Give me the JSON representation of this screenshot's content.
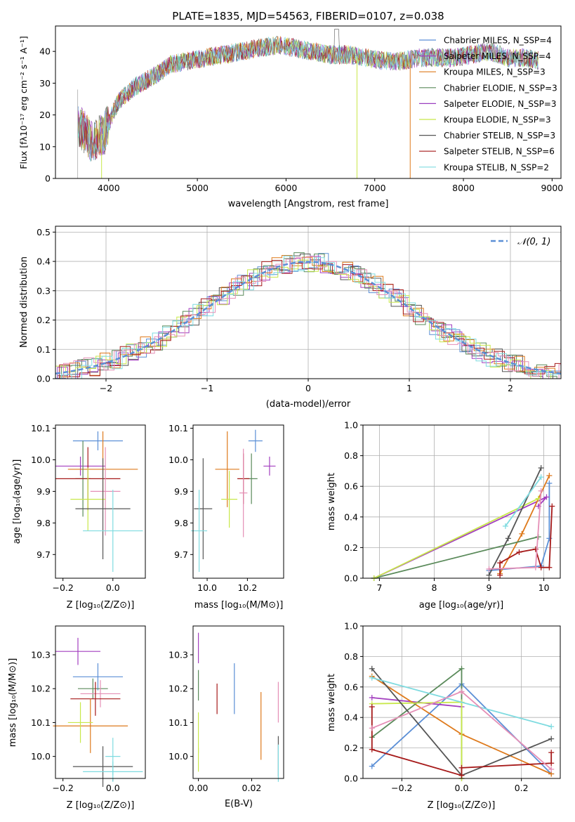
{
  "colors": {
    "s0": "#5b8fd6",
    "s1": "#a33fbf",
    "s2": "#de7a1c",
    "s3": "#5a8a5a",
    "s4": "#9a3fbf",
    "s5": "#c8e84a",
    "s6": "#555555",
    "s7": "#a61a1a",
    "s8": "#7fdbe0",
    "s9": "#e58fb6",
    "gauss": "#5b8fd6"
  },
  "chart_data": [
    {
      "id": "spectrum",
      "type": "line",
      "title": "PLATE=1835, MJD=54563, FIBERID=0107, z=0.038",
      "xlabel": "wavelength [Angstrom, rest frame]",
      "ylabel": "Flux [fλ10⁻¹⁷ erg cm⁻² s⁻¹ A⁻¹]",
      "xlim": [
        3400,
        9100
      ],
      "ylim": [
        0,
        48
      ],
      "xticks": [
        "4000",
        "5000",
        "6000",
        "7000",
        "8000",
        "9000"
      ],
      "yticks": [
        "0",
        "10",
        "20",
        "30",
        "40"
      ],
      "legend_position": "top-right",
      "legend": [
        "Chabrier MILES, N_SSP=4",
        "Salpeter MILES, N_SSP=4",
        "Kroupa MILES, N_SSP=3",
        "Chabrier ELODIE, N_SSP=3",
        "Salpeter ELODIE, N_SSP=3",
        "Kroupa ELODIE, N_SSP=3",
        "Chabrier STELIB, N_SSP=3",
        "Salpeter STELIB, N_SSP=6",
        "Kroupa STELIB, N_SSP=2"
      ],
      "continuum": {
        "x": [
          3650,
          3800,
          3950,
          4100,
          4300,
          4500,
          4700,
          4900,
          5100,
          5300,
          5500,
          5700,
          5900,
          6100,
          6300,
          6500,
          6700,
          6900,
          7100,
          7300,
          7500,
          7700,
          7900,
          8100,
          8300,
          8500,
          8700,
          8850
        ],
        "y": [
          17,
          12,
          14,
          24,
          29,
          32,
          36,
          37,
          38,
          39,
          40,
          41,
          42,
          41,
          40,
          39,
          39,
          38,
          37,
          37,
          38,
          38,
          38,
          39,
          40,
          38,
          38,
          37
        ]
      },
      "drops": [
        {
          "x": 3920,
          "series": 5
        },
        {
          "x": 6800,
          "series": 5
        },
        {
          "x": 7400,
          "series": 2
        }
      ]
    },
    {
      "id": "residuals",
      "type": "line",
      "xlabel": "(data-model)/error",
      "ylabel": "Normed distribution",
      "xlim": [
        -2.5,
        2.5
      ],
      "ylim": [
        0,
        0.52
      ],
      "xticks": [
        "−2",
        "−1",
        "0",
        "1",
        "2"
      ],
      "yticks": [
        "0.0",
        "0.1",
        "0.2",
        "0.3",
        "0.4",
        "0.5"
      ],
      "gauss_label": "𝒩(0, 1)",
      "legend_position": "top-right",
      "grid": true
    },
    {
      "id": "age_vs_Z",
      "type": "scatter",
      "xlabel": "Z [log₁₀(Z/Z⊙)]",
      "ylabel": "age  [log₁₀(age/yr)]",
      "xlim": [
        -0.23,
        0.13
      ],
      "ylim": [
        9.625,
        10.11
      ],
      "xticks": [
        "−0.2",
        "0.0"
      ],
      "xtickvals": [
        -0.2,
        0.0
      ],
      "yticks": [
        "9.7",
        "9.8",
        "9.9",
        "10.0",
        "10.1"
      ],
      "ytickvals": [
        9.7,
        9.8,
        9.9,
        10.0,
        10.1
      ],
      "points": [
        {
          "x": -0.06,
          "y": 10.06,
          "xe": 0.1,
          "ye": 0.03,
          "s": 0
        },
        {
          "x": -0.13,
          "y": 9.98,
          "xe": 0.1,
          "ye": 0.03,
          "s": 1
        },
        {
          "x": -0.04,
          "y": 9.97,
          "xe": 0.14,
          "ye": 0.12,
          "s": 2
        },
        {
          "x": -0.12,
          "y": 9.94,
          "xe": 0.03,
          "ye": 0.12,
          "s": 3
        },
        {
          "x": -0.1,
          "y": 9.94,
          "xe": 0.13,
          "ye": 0.1,
          "s": 7
        },
        {
          "x": -0.03,
          "y": 9.9,
          "xe": 0.06,
          "ye": 0.14,
          "s": 9
        },
        {
          "x": -0.1,
          "y": 9.875,
          "xe": 0.07,
          "ye": 0.1,
          "s": 5
        },
        {
          "x": -0.04,
          "y": 9.845,
          "xe": 0.11,
          "ye": 0.16,
          "s": 6
        },
        {
          "x": -0.0,
          "y": 9.775,
          "xe": 0.12,
          "ye": 0.13,
          "s": 8
        }
      ]
    },
    {
      "id": "age_vs_mass",
      "type": "scatter",
      "xlabel": "mass [log₁₀(M/M⊙)]",
      "xlim": [
        9.93,
        10.38
      ],
      "ylim": [
        9.625,
        10.11
      ],
      "xticks": [
        "10.0",
        "10.2"
      ],
      "xtickvals": [
        10.0,
        10.2
      ],
      "yticks": [
        "9.7",
        "9.8",
        "9.9",
        "10.0",
        "10.1"
      ],
      "ytickvals": [
        9.7,
        9.8,
        9.9,
        10.0,
        10.1
      ],
      "points": [
        {
          "x": 10.24,
          "y": 10.06,
          "xe": 0.035,
          "ye": 0.035,
          "s": 0
        },
        {
          "x": 10.31,
          "y": 9.98,
          "xe": 0.03,
          "ye": 0.03,
          "s": 1
        },
        {
          "x": 10.1,
          "y": 9.97,
          "xe": 0.06,
          "ye": 0.12,
          "s": 2
        },
        {
          "x": 10.22,
          "y": 9.94,
          "xe": 0.03,
          "ye": 0.08,
          "s": 3
        },
        {
          "x": 10.18,
          "y": 9.94,
          "xe": 0.03,
          "ye": 0.08,
          "s": 7
        },
        {
          "x": 10.18,
          "y": 9.895,
          "xe": 0.02,
          "ye": 0.14,
          "s": 9
        },
        {
          "x": 10.11,
          "y": 9.875,
          "xe": 0.04,
          "ye": 0.09,
          "s": 5
        },
        {
          "x": 9.98,
          "y": 9.845,
          "xe": 0.045,
          "ye": 0.16,
          "s": 6
        },
        {
          "x": 9.96,
          "y": 9.775,
          "xe": 0.04,
          "ye": 0.13,
          "s": 8
        }
      ]
    },
    {
      "id": "weight_vs_age",
      "type": "line",
      "xlabel": "age  [log₁₀(age/yr)]",
      "ylabel": "mass weight",
      "xlim": [
        6.7,
        10.3
      ],
      "ylim": [
        0,
        1.0
      ],
      "xticks": [
        "7",
        "8",
        "9",
        "10"
      ],
      "xtickvals": [
        7,
        8,
        9,
        10
      ],
      "yticks": [
        "0.0",
        "0.2",
        "0.4",
        "0.6",
        "0.8",
        "1.0"
      ],
      "ytickvals": [
        0,
        0.2,
        0.4,
        0.6,
        0.8,
        1.0
      ],
      "grid": true,
      "series": [
        {
          "s": 0,
          "x": [
            9.0,
            9.95,
            10.1,
            10.1
          ],
          "y": [
            0.05,
            0.08,
            0.26,
            0.62
          ]
        },
        {
          "s": 1,
          "x": [
            6.9,
            10.05,
            9.9
          ],
          "y": [
            0.0,
            0.53,
            0.47
          ]
        },
        {
          "s": 2,
          "x": [
            9.2,
            9.6,
            10.1
          ],
          "y": [
            0.03,
            0.29,
            0.67
          ]
        },
        {
          "s": 3,
          "x": [
            6.9,
            9.9
          ],
          "y": [
            0.0,
            0.27
          ]
        },
        {
          "s": 5,
          "x": [
            6.9,
            9.9
          ],
          "y": [
            0.0,
            0.52
          ]
        },
        {
          "s": 6,
          "x": [
            9.0,
            9.35,
            9.95
          ],
          "y": [
            0.02,
            0.26,
            0.72
          ]
        },
        {
          "s": 7,
          "x": [
            9.2,
            9.2,
            9.55,
            9.85,
            9.95,
            10.1,
            10.15
          ],
          "y": [
            0.02,
            0.1,
            0.17,
            0.19,
            0.07,
            0.07,
            0.47
          ]
        },
        {
          "s": 8,
          "x": [
            9.3,
            9.95
          ],
          "y": [
            0.34,
            0.66
          ]
        },
        {
          "s": 9,
          "x": [
            9.0,
            9.85,
            9.95
          ],
          "y": [
            0.06,
            0.07,
            0.57
          ]
        }
      ]
    },
    {
      "id": "mass_vs_Z",
      "type": "scatter",
      "xlabel": "Z [log₁₀(Z/Z⊙)]",
      "ylabel": "mass [log₁₀(M/M⊙)]",
      "xlim": [
        -0.23,
        0.13
      ],
      "ylim": [
        9.935,
        10.385
      ],
      "xticks": [
        "−0.2",
        "0.0"
      ],
      "xtickvals": [
        -0.2,
        0.0
      ],
      "yticks": [
        "10.0",
        "10.1",
        "10.2",
        "10.3"
      ],
      "ytickvals": [
        10.0,
        10.1,
        10.2,
        10.3
      ],
      "points": [
        {
          "x": -0.14,
          "y": 10.31,
          "xe": 0.09,
          "ye": 0.04,
          "s": 1
        },
        {
          "x": -0.06,
          "y": 10.235,
          "xe": 0.1,
          "ye": 0.04,
          "s": 0
        },
        {
          "x": -0.08,
          "y": 10.2,
          "xe": 0.06,
          "ye": 0.03,
          "s": 3
        },
        {
          "x": -0.05,
          "y": 10.185,
          "xe": 0.08,
          "ye": 0.04,
          "s": 9
        },
        {
          "x": -0.07,
          "y": 10.17,
          "xe": 0.1,
          "ye": 0.05,
          "s": 7
        },
        {
          "x": -0.09,
          "y": 10.09,
          "xe": 0.15,
          "ye": 0.08,
          "s": 2
        },
        {
          "x": -0.13,
          "y": 10.1,
          "xe": 0.05,
          "ye": 0.06,
          "s": 5
        },
        {
          "x": 0.0,
          "y": 10.0,
          "xe": 0.03,
          "ye": 0.055,
          "s": 8
        },
        {
          "x": -0.04,
          "y": 9.97,
          "xe": 0.12,
          "ye": 0.06,
          "s": 6
        },
        {
          "x": -0.0,
          "y": 9.955,
          "xe": 0.12,
          "ye": 0.03,
          "s": 8
        }
      ]
    },
    {
      "id": "mass_vs_ebv",
      "type": "scatter",
      "xlabel": "E(B-V)",
      "xlim": [
        -0.002,
        0.032
      ],
      "ylim": [
        9.935,
        10.385
      ],
      "xticks": [
        "0.00",
        "0.02"
      ],
      "xtickvals": [
        0.0,
        0.02
      ],
      "yticks": [
        "10.0",
        "10.1",
        "10.2",
        "10.3"
      ],
      "ytickvals": [
        10.0,
        10.1,
        10.2,
        10.3
      ],
      "points": [
        {
          "x": 0.0,
          "y": 10.32,
          "xe": 0.0,
          "ye": 0.045,
          "s": 1
        },
        {
          "x": 0.0,
          "y": 10.21,
          "xe": 0.0,
          "ye": 0.045,
          "s": 3
        },
        {
          "x": 0.0,
          "y": 10.07,
          "xe": 0.0,
          "ye": 0.06,
          "s": 5
        },
        {
          "x": 0.0,
          "y": 9.99,
          "xe": 0.0,
          "ye": 0.035,
          "s": 5
        },
        {
          "x": 0.007,
          "y": 10.17,
          "xe": 0.0,
          "ye": 0.045,
          "s": 7
        },
        {
          "x": 0.0135,
          "y": 10.2,
          "xe": 0.0,
          "ye": 0.075,
          "s": 0
        },
        {
          "x": 0.0235,
          "y": 10.09,
          "xe": 0.0,
          "ye": 0.1,
          "s": 2
        },
        {
          "x": 0.03,
          "y": 10.16,
          "xe": 0.0,
          "ye": 0.06,
          "s": 9
        },
        {
          "x": 0.03,
          "y": 10.0,
          "xe": 0.0,
          "ye": 0.06,
          "s": 6
        },
        {
          "x": 0.03,
          "y": 9.98,
          "xe": 0.0,
          "ye": 0.055,
          "s": 8
        }
      ]
    },
    {
      "id": "weight_vs_Z",
      "type": "line",
      "xlabel": "Z [log₁₀(Z/Z⊙)]",
      "ylabel": "mass weight",
      "xlim": [
        -0.33,
        0.33
      ],
      "ylim": [
        0,
        1.0
      ],
      "xticks": [
        "−0.2",
        "0.0",
        "0.2"
      ],
      "xtickvals": [
        -0.2,
        0.0,
        0.2
      ],
      "yticks": [
        "0.0",
        "0.2",
        "0.4",
        "0.6",
        "0.8",
        "1.0"
      ],
      "ytickvals": [
        0,
        0.2,
        0.4,
        0.6,
        0.8,
        1.0
      ],
      "grid": true,
      "series": [
        {
          "s": 0,
          "x": [
            -0.3,
            0.0,
            0.3
          ],
          "y": [
            0.08,
            0.62,
            0.03
          ]
        },
        {
          "s": 1,
          "x": [
            -0.3,
            0.0
          ],
          "y": [
            0.53,
            0.47
          ]
        },
        {
          "s": 2,
          "x": [
            -0.3,
            0.0,
            0.3
          ],
          "y": [
            0.67,
            0.29,
            0.03
          ]
        },
        {
          "s": 3,
          "x": [
            -0.3,
            0.0,
            0.0
          ],
          "y": [
            0.27,
            0.72,
            0.0
          ]
        },
        {
          "s": 5,
          "x": [
            -0.3,
            0.0,
            0.0
          ],
          "y": [
            0.49,
            0.5,
            0.0
          ]
        },
        {
          "s": 6,
          "x": [
            -0.3,
            0.0,
            0.3
          ],
          "y": [
            0.72,
            0.02,
            0.26
          ]
        },
        {
          "s": 7,
          "x": [
            -0.3,
            -0.3,
            0.0,
            0.0,
            0.3,
            0.3
          ],
          "y": [
            0.47,
            0.19,
            0.02,
            0.07,
            0.1,
            0.17
          ]
        },
        {
          "s": 8,
          "x": [
            -0.3,
            0.3
          ],
          "y": [
            0.66,
            0.34
          ]
        },
        {
          "s": 9,
          "x": [
            -0.3,
            0.0,
            0.3
          ],
          "y": [
            0.33,
            0.57,
            0.06
          ]
        }
      ]
    }
  ]
}
